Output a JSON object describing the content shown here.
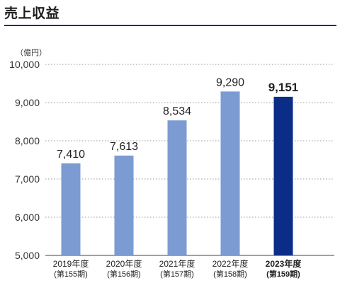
{
  "page": {
    "title": "売上収益",
    "unit": "（億円）"
  },
  "chart_data": {
    "type": "bar",
    "categories": [
      "2019年度",
      "2020年度",
      "2021年度",
      "2022年度",
      "2023年度"
    ],
    "subcategories": [
      "(第155期)",
      "(第156期)",
      "(第157期)",
      "(第158期)",
      "(第159期)"
    ],
    "values": [
      7410,
      7613,
      8534,
      9290,
      9151
    ],
    "value_labels": [
      "7,410",
      "7,613",
      "8,534",
      "9,290",
      "9,151"
    ],
    "highlight_index": 4,
    "ylim": [
      5000,
      10000
    ],
    "yticks": [
      5000,
      6000,
      7000,
      8000,
      9000,
      10000
    ],
    "ytick_labels": [
      "5,000",
      "6,000",
      "7,000",
      "8,000",
      "9,000",
      "10,000"
    ],
    "grid": "dotted-horizontal",
    "colors": {
      "bar": "#7b9bd2",
      "highlight": "#0b2d88",
      "grid": "#9a9a9a",
      "axis": "#444444",
      "title_rule": "#0b2d7a"
    }
  }
}
